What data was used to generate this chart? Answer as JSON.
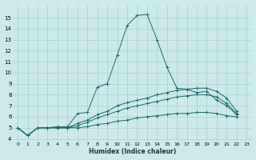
{
  "xlabel": "Humidex (Indice chaleur)",
  "background_color": "#cceaea",
  "grid_color": "#aacfcf",
  "line_color": "#1a6b6b",
  "xlim": [
    -0.5,
    23.5
  ],
  "ylim": [
    3.8,
    16.2
  ],
  "yticks": [
    4,
    5,
    6,
    7,
    8,
    9,
    10,
    11,
    12,
    13,
    14,
    15
  ],
  "xticks": [
    0,
    1,
    2,
    3,
    4,
    5,
    6,
    7,
    8,
    9,
    10,
    11,
    12,
    13,
    14,
    15,
    16,
    17,
    18,
    19,
    20,
    21,
    22,
    23
  ],
  "series": [
    {
      "x": [
        0,
        1,
        2,
        3,
        4,
        5,
        6,
        7,
        8,
        9,
        10,
        11,
        12,
        13,
        14,
        15,
        16,
        17,
        18,
        19,
        20,
        21,
        22
      ],
      "y": [
        5.0,
        4.3,
        5.0,
        5.0,
        5.1,
        5.1,
        6.3,
        6.4,
        8.7,
        9.0,
        11.6,
        14.3,
        15.2,
        15.3,
        13.0,
        10.5,
        8.6,
        8.5,
        8.2,
        8.3,
        7.5,
        7.0,
        6.2
      ]
    },
    {
      "x": [
        0,
        1,
        2,
        3,
        4,
        5,
        6,
        7,
        8,
        9,
        10,
        11,
        12,
        13,
        14,
        15,
        16,
        17,
        18,
        19,
        20,
        21,
        22
      ],
      "y": [
        5.0,
        4.3,
        5.0,
        5.0,
        5.0,
        5.0,
        5.4,
        5.7,
        6.2,
        6.5,
        7.0,
        7.3,
        7.5,
        7.7,
        8.0,
        8.2,
        8.4,
        8.5,
        8.6,
        8.6,
        8.3,
        7.7,
        6.5
      ]
    },
    {
      "x": [
        0,
        1,
        2,
        3,
        4,
        5,
        6,
        7,
        8,
        9,
        10,
        11,
        12,
        13,
        14,
        15,
        16,
        17,
        18,
        19,
        20,
        21,
        22
      ],
      "y": [
        5.0,
        4.3,
        5.0,
        5.0,
        5.0,
        5.0,
        5.2,
        5.5,
        5.9,
        6.2,
        6.5,
        6.8,
        7.0,
        7.2,
        7.4,
        7.6,
        7.8,
        7.9,
        8.0,
        8.0,
        7.8,
        7.2,
        6.3
      ]
    },
    {
      "x": [
        0,
        1,
        2,
        3,
        4,
        5,
        6,
        7,
        8,
        9,
        10,
        11,
        12,
        13,
        14,
        15,
        16,
        17,
        18,
        19,
        20,
        21,
        22
      ],
      "y": [
        5.0,
        4.3,
        5.0,
        5.0,
        5.0,
        5.0,
        5.0,
        5.1,
        5.3,
        5.4,
        5.6,
        5.7,
        5.9,
        6.0,
        6.1,
        6.2,
        6.3,
        6.3,
        6.4,
        6.4,
        6.3,
        6.1,
        6.0
      ]
    }
  ]
}
